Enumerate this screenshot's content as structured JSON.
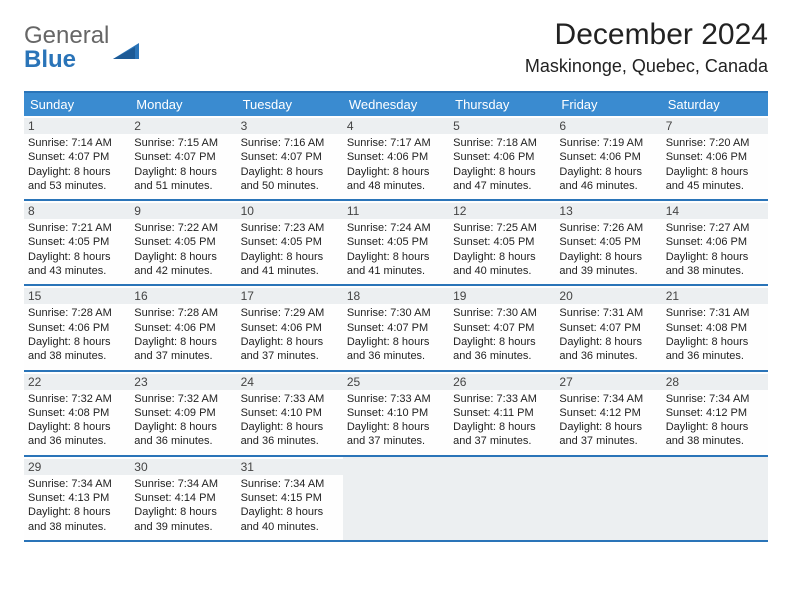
{
  "brand": {
    "word1": "General",
    "word2": "Blue"
  },
  "title": "December 2024",
  "location": "Maskinonge, Quebec, Canada",
  "colors": {
    "header_bg": "#3a8bd0",
    "rule": "#2a74b8",
    "daynum_bg": "#eceff1",
    "empty_bg": "#eceff1",
    "text": "#222222",
    "brand_gray": "#666666",
    "brand_blue": "#2a74b8"
  },
  "typography": {
    "title_fontsize": 30,
    "location_fontsize": 18,
    "dow_fontsize": 13,
    "daynum_fontsize": 12,
    "cell_fontsize": 11
  },
  "dow": [
    "Sunday",
    "Monday",
    "Tuesday",
    "Wednesday",
    "Thursday",
    "Friday",
    "Saturday"
  ],
  "weeks": [
    [
      {
        "n": "1",
        "sr": "7:14 AM",
        "ss": "4:07 PM",
        "dl": "8 hours and 53 minutes."
      },
      {
        "n": "2",
        "sr": "7:15 AM",
        "ss": "4:07 PM",
        "dl": "8 hours and 51 minutes."
      },
      {
        "n": "3",
        "sr": "7:16 AM",
        "ss": "4:07 PM",
        "dl": "8 hours and 50 minutes."
      },
      {
        "n": "4",
        "sr": "7:17 AM",
        "ss": "4:06 PM",
        "dl": "8 hours and 48 minutes."
      },
      {
        "n": "5",
        "sr": "7:18 AM",
        "ss": "4:06 PM",
        "dl": "8 hours and 47 minutes."
      },
      {
        "n": "6",
        "sr": "7:19 AM",
        "ss": "4:06 PM",
        "dl": "8 hours and 46 minutes."
      },
      {
        "n": "7",
        "sr": "7:20 AM",
        "ss": "4:06 PM",
        "dl": "8 hours and 45 minutes."
      }
    ],
    [
      {
        "n": "8",
        "sr": "7:21 AM",
        "ss": "4:05 PM",
        "dl": "8 hours and 43 minutes."
      },
      {
        "n": "9",
        "sr": "7:22 AM",
        "ss": "4:05 PM",
        "dl": "8 hours and 42 minutes."
      },
      {
        "n": "10",
        "sr": "7:23 AM",
        "ss": "4:05 PM",
        "dl": "8 hours and 41 minutes."
      },
      {
        "n": "11",
        "sr": "7:24 AM",
        "ss": "4:05 PM",
        "dl": "8 hours and 41 minutes."
      },
      {
        "n": "12",
        "sr": "7:25 AM",
        "ss": "4:05 PM",
        "dl": "8 hours and 40 minutes."
      },
      {
        "n": "13",
        "sr": "7:26 AM",
        "ss": "4:05 PM",
        "dl": "8 hours and 39 minutes."
      },
      {
        "n": "14",
        "sr": "7:27 AM",
        "ss": "4:06 PM",
        "dl": "8 hours and 38 minutes."
      }
    ],
    [
      {
        "n": "15",
        "sr": "7:28 AM",
        "ss": "4:06 PM",
        "dl": "8 hours and 38 minutes."
      },
      {
        "n": "16",
        "sr": "7:28 AM",
        "ss": "4:06 PM",
        "dl": "8 hours and 37 minutes."
      },
      {
        "n": "17",
        "sr": "7:29 AM",
        "ss": "4:06 PM",
        "dl": "8 hours and 37 minutes."
      },
      {
        "n": "18",
        "sr": "7:30 AM",
        "ss": "4:07 PM",
        "dl": "8 hours and 36 minutes."
      },
      {
        "n": "19",
        "sr": "7:30 AM",
        "ss": "4:07 PM",
        "dl": "8 hours and 36 minutes."
      },
      {
        "n": "20",
        "sr": "7:31 AM",
        "ss": "4:07 PM",
        "dl": "8 hours and 36 minutes."
      },
      {
        "n": "21",
        "sr": "7:31 AM",
        "ss": "4:08 PM",
        "dl": "8 hours and 36 minutes."
      }
    ],
    [
      {
        "n": "22",
        "sr": "7:32 AM",
        "ss": "4:08 PM",
        "dl": "8 hours and 36 minutes."
      },
      {
        "n": "23",
        "sr": "7:32 AM",
        "ss": "4:09 PM",
        "dl": "8 hours and 36 minutes."
      },
      {
        "n": "24",
        "sr": "7:33 AM",
        "ss": "4:10 PM",
        "dl": "8 hours and 36 minutes."
      },
      {
        "n": "25",
        "sr": "7:33 AM",
        "ss": "4:10 PM",
        "dl": "8 hours and 37 minutes."
      },
      {
        "n": "26",
        "sr": "7:33 AM",
        "ss": "4:11 PM",
        "dl": "8 hours and 37 minutes."
      },
      {
        "n": "27",
        "sr": "7:34 AM",
        "ss": "4:12 PM",
        "dl": "8 hours and 37 minutes."
      },
      {
        "n": "28",
        "sr": "7:34 AM",
        "ss": "4:12 PM",
        "dl": "8 hours and 38 minutes."
      }
    ],
    [
      {
        "n": "29",
        "sr": "7:34 AM",
        "ss": "4:13 PM",
        "dl": "8 hours and 38 minutes."
      },
      {
        "n": "30",
        "sr": "7:34 AM",
        "ss": "4:14 PM",
        "dl": "8 hours and 39 minutes."
      },
      {
        "n": "31",
        "sr": "7:34 AM",
        "ss": "4:15 PM",
        "dl": "8 hours and 40 minutes."
      },
      null,
      null,
      null,
      null
    ]
  ],
  "labels": {
    "sunrise": "Sunrise:",
    "sunset": "Sunset:",
    "daylight": "Daylight:"
  }
}
